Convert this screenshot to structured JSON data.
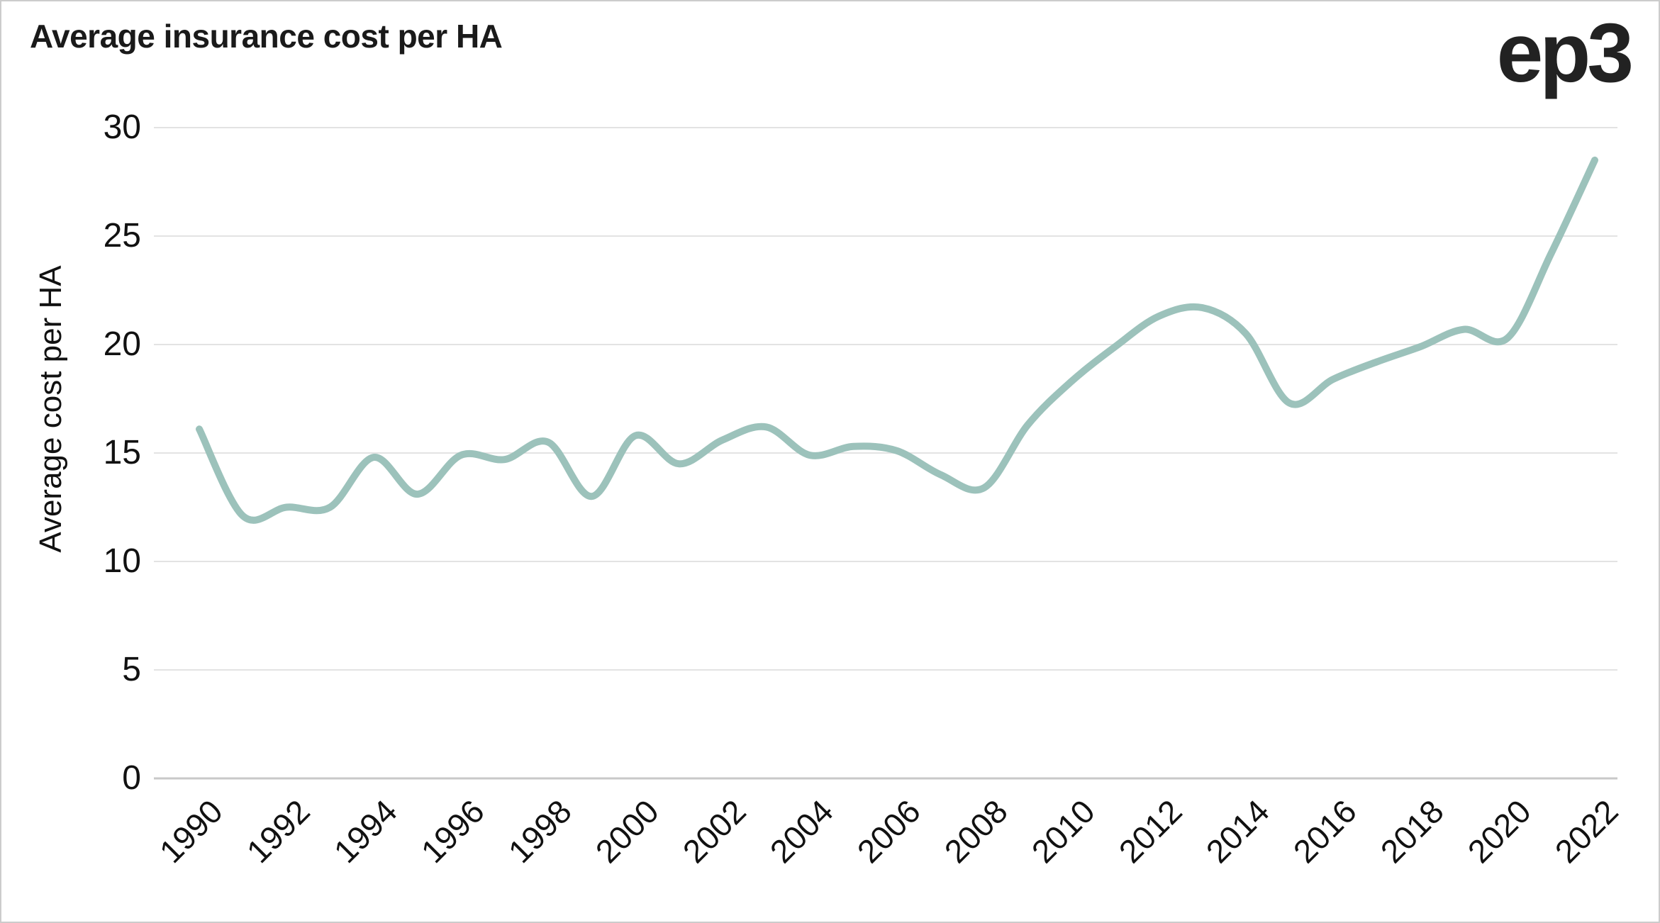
{
  "header": {
    "title": "Average insurance cost per HA",
    "logo": "ep3"
  },
  "colors": {
    "line": "#9cc2bb",
    "gridline": "#e3e3e3",
    "zero_line": "#c8c8c8",
    "text": "#111111",
    "title_text": "#1a1a1a",
    "border": "#cccccc",
    "background": "#ffffff"
  },
  "chart_data": {
    "type": "line",
    "title": "Average insurance cost per HA",
    "xlabel": "",
    "ylabel": "Average cost per HA",
    "legend": false,
    "grid": true,
    "smooth": true,
    "line_width": 10,
    "xlim": [
      1990,
      2022
    ],
    "ylim": [
      0,
      30
    ],
    "y_ticks": [
      0,
      5,
      10,
      15,
      20,
      25,
      30
    ],
    "x_ticks": [
      1990,
      1992,
      1994,
      1996,
      1998,
      2000,
      2002,
      2004,
      2006,
      2008,
      2010,
      2012,
      2014,
      2016,
      2018,
      2020,
      2022
    ],
    "x": [
      1990,
      1991,
      1992,
      1993,
      1994,
      1995,
      1996,
      1997,
      1998,
      1999,
      2000,
      2001,
      2002,
      2003,
      2004,
      2005,
      2006,
      2007,
      2008,
      2009,
      2010,
      2011,
      2012,
      2013,
      2014,
      2015,
      2016,
      2017,
      2018,
      2019,
      2020,
      2021,
      2022
    ],
    "values": [
      16.1,
      12.1,
      12.5,
      12.5,
      14.8,
      13.1,
      14.9,
      14.7,
      15.5,
      13.0,
      15.8,
      14.5,
      15.6,
      16.2,
      14.9,
      15.3,
      15.1,
      14.0,
      13.4,
      16.3,
      18.3,
      19.9,
      21.3,
      21.7,
      20.5,
      17.3,
      18.4,
      19.2,
      19.9,
      20.7,
      20.3,
      24.2,
      28.5
    ]
  }
}
